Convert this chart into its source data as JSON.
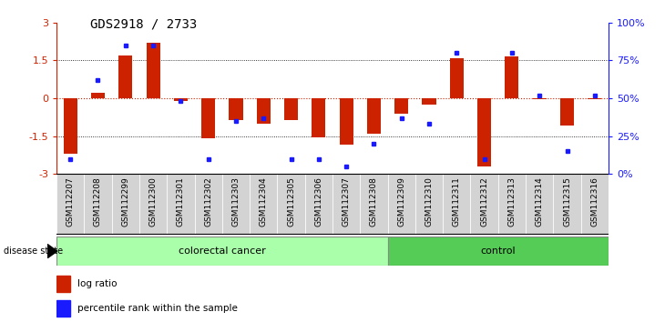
{
  "title": "GDS2918 / 2733",
  "samples": [
    "GSM112207",
    "GSM112208",
    "GSM112299",
    "GSM112300",
    "GSM112301",
    "GSM112302",
    "GSM112303",
    "GSM112304",
    "GSM112305",
    "GSM112306",
    "GSM112307",
    "GSM112308",
    "GSM112309",
    "GSM112310",
    "GSM112311",
    "GSM112312",
    "GSM112313",
    "GSM112314",
    "GSM112315",
    "GSM112316"
  ],
  "log_ratio": [
    -2.2,
    0.2,
    1.7,
    2.2,
    -0.1,
    -1.6,
    -0.85,
    -1.0,
    -0.85,
    -1.55,
    -1.85,
    -1.4,
    -0.6,
    -0.25,
    1.6,
    -2.7,
    1.65,
    -0.05,
    -1.1,
    -0.05
  ],
  "percentile": [
    10,
    62,
    85,
    85,
    48,
    10,
    35,
    37,
    10,
    10,
    5,
    20,
    37,
    33,
    80,
    10,
    80,
    52,
    15,
    52
  ],
  "colorectal_cancer_count": 12,
  "control_count": 8,
  "ylim": [
    -3,
    3
  ],
  "bar_color": "#cc2200",
  "dot_color": "#1a1aff",
  "zero_line_color": "#cc2200",
  "colorectal_color": "#aaffaa",
  "control_color": "#55cc55",
  "bg_color": "#ffffff",
  "tick_label_fontsize": 6.5,
  "title_fontsize": 10
}
